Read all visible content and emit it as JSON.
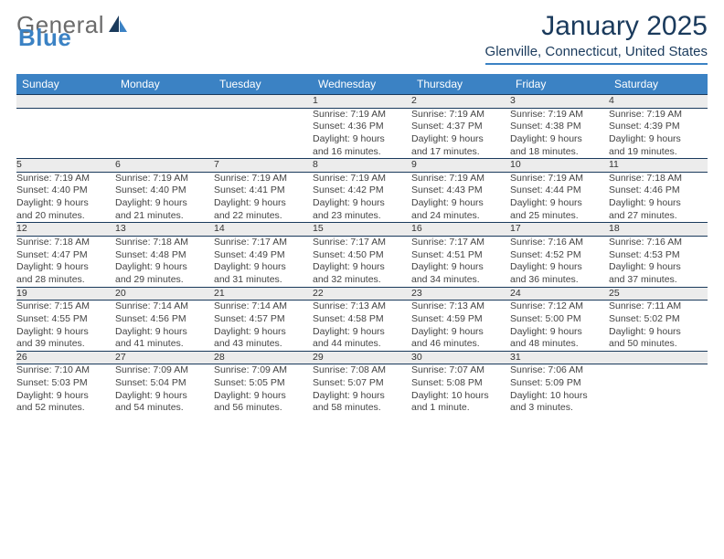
{
  "logo": {
    "word1": "General",
    "word2": "Blue"
  },
  "title": "January 2025",
  "subtitle": "Glenville, Connecticut, United States",
  "colors": {
    "header_blue": "#3b82c4",
    "text_navy": "#1a3a5c",
    "row_alt": "#ececec",
    "bg": "#ffffff"
  },
  "weekdays": [
    "Sunday",
    "Monday",
    "Tuesday",
    "Wednesday",
    "Thursday",
    "Friday",
    "Saturday"
  ],
  "weeks": [
    [
      null,
      null,
      null,
      {
        "day": "1",
        "sunrise": "Sunrise: 7:19 AM",
        "sunset": "Sunset: 4:36 PM",
        "d1": "Daylight: 9 hours",
        "d2": "and 16 minutes."
      },
      {
        "day": "2",
        "sunrise": "Sunrise: 7:19 AM",
        "sunset": "Sunset: 4:37 PM",
        "d1": "Daylight: 9 hours",
        "d2": "and 17 minutes."
      },
      {
        "day": "3",
        "sunrise": "Sunrise: 7:19 AM",
        "sunset": "Sunset: 4:38 PM",
        "d1": "Daylight: 9 hours",
        "d2": "and 18 minutes."
      },
      {
        "day": "4",
        "sunrise": "Sunrise: 7:19 AM",
        "sunset": "Sunset: 4:39 PM",
        "d1": "Daylight: 9 hours",
        "d2": "and 19 minutes."
      }
    ],
    [
      {
        "day": "5",
        "sunrise": "Sunrise: 7:19 AM",
        "sunset": "Sunset: 4:40 PM",
        "d1": "Daylight: 9 hours",
        "d2": "and 20 minutes."
      },
      {
        "day": "6",
        "sunrise": "Sunrise: 7:19 AM",
        "sunset": "Sunset: 4:40 PM",
        "d1": "Daylight: 9 hours",
        "d2": "and 21 minutes."
      },
      {
        "day": "7",
        "sunrise": "Sunrise: 7:19 AM",
        "sunset": "Sunset: 4:41 PM",
        "d1": "Daylight: 9 hours",
        "d2": "and 22 minutes."
      },
      {
        "day": "8",
        "sunrise": "Sunrise: 7:19 AM",
        "sunset": "Sunset: 4:42 PM",
        "d1": "Daylight: 9 hours",
        "d2": "and 23 minutes."
      },
      {
        "day": "9",
        "sunrise": "Sunrise: 7:19 AM",
        "sunset": "Sunset: 4:43 PM",
        "d1": "Daylight: 9 hours",
        "d2": "and 24 minutes."
      },
      {
        "day": "10",
        "sunrise": "Sunrise: 7:19 AM",
        "sunset": "Sunset: 4:44 PM",
        "d1": "Daylight: 9 hours",
        "d2": "and 25 minutes."
      },
      {
        "day": "11",
        "sunrise": "Sunrise: 7:18 AM",
        "sunset": "Sunset: 4:46 PM",
        "d1": "Daylight: 9 hours",
        "d2": "and 27 minutes."
      }
    ],
    [
      {
        "day": "12",
        "sunrise": "Sunrise: 7:18 AM",
        "sunset": "Sunset: 4:47 PM",
        "d1": "Daylight: 9 hours",
        "d2": "and 28 minutes."
      },
      {
        "day": "13",
        "sunrise": "Sunrise: 7:18 AM",
        "sunset": "Sunset: 4:48 PM",
        "d1": "Daylight: 9 hours",
        "d2": "and 29 minutes."
      },
      {
        "day": "14",
        "sunrise": "Sunrise: 7:17 AM",
        "sunset": "Sunset: 4:49 PM",
        "d1": "Daylight: 9 hours",
        "d2": "and 31 minutes."
      },
      {
        "day": "15",
        "sunrise": "Sunrise: 7:17 AM",
        "sunset": "Sunset: 4:50 PM",
        "d1": "Daylight: 9 hours",
        "d2": "and 32 minutes."
      },
      {
        "day": "16",
        "sunrise": "Sunrise: 7:17 AM",
        "sunset": "Sunset: 4:51 PM",
        "d1": "Daylight: 9 hours",
        "d2": "and 34 minutes."
      },
      {
        "day": "17",
        "sunrise": "Sunrise: 7:16 AM",
        "sunset": "Sunset: 4:52 PM",
        "d1": "Daylight: 9 hours",
        "d2": "and 36 minutes."
      },
      {
        "day": "18",
        "sunrise": "Sunrise: 7:16 AM",
        "sunset": "Sunset: 4:53 PM",
        "d1": "Daylight: 9 hours",
        "d2": "and 37 minutes."
      }
    ],
    [
      {
        "day": "19",
        "sunrise": "Sunrise: 7:15 AM",
        "sunset": "Sunset: 4:55 PM",
        "d1": "Daylight: 9 hours",
        "d2": "and 39 minutes."
      },
      {
        "day": "20",
        "sunrise": "Sunrise: 7:14 AM",
        "sunset": "Sunset: 4:56 PM",
        "d1": "Daylight: 9 hours",
        "d2": "and 41 minutes."
      },
      {
        "day": "21",
        "sunrise": "Sunrise: 7:14 AM",
        "sunset": "Sunset: 4:57 PM",
        "d1": "Daylight: 9 hours",
        "d2": "and 43 minutes."
      },
      {
        "day": "22",
        "sunrise": "Sunrise: 7:13 AM",
        "sunset": "Sunset: 4:58 PM",
        "d1": "Daylight: 9 hours",
        "d2": "and 44 minutes."
      },
      {
        "day": "23",
        "sunrise": "Sunrise: 7:13 AM",
        "sunset": "Sunset: 4:59 PM",
        "d1": "Daylight: 9 hours",
        "d2": "and 46 minutes."
      },
      {
        "day": "24",
        "sunrise": "Sunrise: 7:12 AM",
        "sunset": "Sunset: 5:00 PM",
        "d1": "Daylight: 9 hours",
        "d2": "and 48 minutes."
      },
      {
        "day": "25",
        "sunrise": "Sunrise: 7:11 AM",
        "sunset": "Sunset: 5:02 PM",
        "d1": "Daylight: 9 hours",
        "d2": "and 50 minutes."
      }
    ],
    [
      {
        "day": "26",
        "sunrise": "Sunrise: 7:10 AM",
        "sunset": "Sunset: 5:03 PM",
        "d1": "Daylight: 9 hours",
        "d2": "and 52 minutes."
      },
      {
        "day": "27",
        "sunrise": "Sunrise: 7:09 AM",
        "sunset": "Sunset: 5:04 PM",
        "d1": "Daylight: 9 hours",
        "d2": "and 54 minutes."
      },
      {
        "day": "28",
        "sunrise": "Sunrise: 7:09 AM",
        "sunset": "Sunset: 5:05 PM",
        "d1": "Daylight: 9 hours",
        "d2": "and 56 minutes."
      },
      {
        "day": "29",
        "sunrise": "Sunrise: 7:08 AM",
        "sunset": "Sunset: 5:07 PM",
        "d1": "Daylight: 9 hours",
        "d2": "and 58 minutes."
      },
      {
        "day": "30",
        "sunrise": "Sunrise: 7:07 AM",
        "sunset": "Sunset: 5:08 PM",
        "d1": "Daylight: 10 hours",
        "d2": "and 1 minute."
      },
      {
        "day": "31",
        "sunrise": "Sunrise: 7:06 AM",
        "sunset": "Sunset: 5:09 PM",
        "d1": "Daylight: 10 hours",
        "d2": "and 3 minutes."
      },
      null
    ]
  ]
}
